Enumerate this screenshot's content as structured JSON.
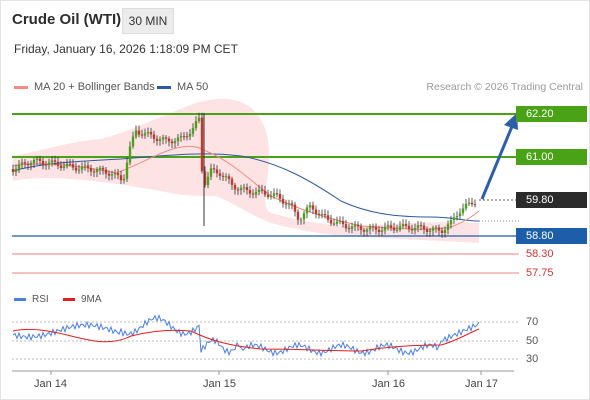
{
  "header": {
    "title": "Crude Oil (WTI)",
    "timeframe_button": "30 MIN",
    "timestamp": "Friday, January 16, 2026 1:18:09 PM CET"
  },
  "legend": {
    "ma20_label": "MA 20 + Bollinger Bands",
    "ma20_color": "#f28b82",
    "ma50_label": "MA 50",
    "ma50_color": "#2c5aa0",
    "credit": "Research © 2026 Trading Central"
  },
  "levels": {
    "resistance_2": "62.20",
    "resistance_1": "61.00",
    "current": "59.80",
    "pivot": "58.80",
    "support_1": "58.30",
    "support_2": "57.75"
  },
  "rsi_legend": {
    "rsi_label": "RSI",
    "rsi_color": "#4a7fe0",
    "ma9_label": "9MA",
    "ma9_color": "#e02020"
  },
  "rsi_axis": {
    "t70": "70",
    "t50": "50",
    "t30": "30"
  },
  "x_axis": {
    "d1": "Jan 14",
    "d2": "Jan 15",
    "d3": "Jan 16",
    "d4": "Jan 17"
  },
  "colors": {
    "resistance": "#4aa317",
    "pivot": "#1d5ea8",
    "support": "#f08080",
    "arrow": "#2c5fa8"
  }
}
